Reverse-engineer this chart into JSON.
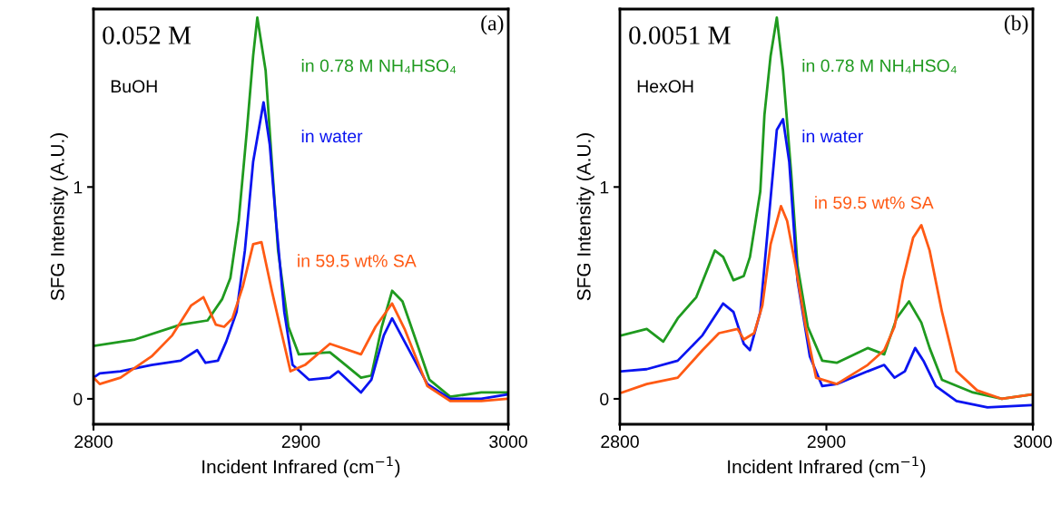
{
  "chart_data": [
    {
      "type": "line",
      "xlabel": "Incident Infrared (cm$^{−1}$)",
      "ylabel": "SFG Intensity (A.U.)",
      "xlim": [
        2800,
        3000
      ],
      "xticks": [
        2800,
        2900,
        3000
      ],
      "ylim": [
        -0.12,
        1.84
      ],
      "yticks": [
        0,
        1
      ],
      "grid": false,
      "legend": false,
      "annotations": [
        "0.052 M",
        "BuOH",
        "(a)"
      ],
      "series": [
        {
          "name": "in 0.78 M NH₄HSO₄",
          "color": "#1f9a1f",
          "x": [
            2800,
            2820,
            2842,
            2855,
            2862,
            2866,
            2870,
            2874,
            2877,
            2879,
            2883,
            2886,
            2889,
            2894,
            2899,
            2914,
            2919,
            2929,
            2934,
            2939,
            2944,
            2949,
            2955,
            2962,
            2972,
            2987,
            3000
          ],
          "values": [
            0.25,
            0.28,
            0.35,
            0.37,
            0.47,
            0.57,
            0.84,
            1.27,
            1.62,
            1.8,
            1.55,
            1.12,
            0.7,
            0.34,
            0.21,
            0.22,
            0.18,
            0.1,
            0.11,
            0.34,
            0.51,
            0.46,
            0.29,
            0.09,
            0.01,
            0.03,
            0.03
          ]
        },
        {
          "name": "in water",
          "color": "#0a14f0",
          "x": [
            2800,
            2803,
            2813,
            2828,
            2842,
            2850,
            2854,
            2860,
            2864,
            2869,
            2873,
            2877,
            2882,
            2885,
            2888,
            2892,
            2896,
            2904,
            2914,
            2918,
            2929,
            2934,
            2940,
            2944,
            2950,
            2961,
            2972,
            2987,
            2999
          ],
          "values": [
            0.1,
            0.12,
            0.13,
            0.16,
            0.18,
            0.23,
            0.17,
            0.18,
            0.27,
            0.41,
            0.7,
            1.12,
            1.4,
            1.2,
            0.84,
            0.41,
            0.16,
            0.09,
            0.1,
            0.13,
            0.03,
            0.09,
            0.3,
            0.38,
            0.27,
            0.07,
            0.0,
            0.0,
            0.02
          ]
        },
        {
          "name": "in 59.5 wt% SA",
          "color": "#ff5a14",
          "x": [
            2800,
            2803,
            2813,
            2828,
            2838,
            2847,
            2853,
            2859,
            2863,
            2867,
            2872,
            2877,
            2881,
            2886,
            2890,
            2895,
            2902,
            2914,
            2929,
            2936,
            2944,
            2950,
            2961,
            2972,
            2987,
            2999
          ],
          "values": [
            0.1,
            0.07,
            0.1,
            0.2,
            0.3,
            0.44,
            0.48,
            0.35,
            0.34,
            0.38,
            0.53,
            0.73,
            0.74,
            0.51,
            0.34,
            0.13,
            0.16,
            0.26,
            0.21,
            0.34,
            0.45,
            0.33,
            0.06,
            -0.01,
            -0.01,
            0.0
          ]
        }
      ]
    },
    {
      "type": "line",
      "xlabel": "Incident Infrared (cm$^{−1}$)",
      "ylabel": "SFG Intensity (A.U.)",
      "xlim": [
        2800,
        3000
      ],
      "xticks": [
        2800,
        2900,
        3000
      ],
      "ylim": [
        -0.12,
        1.84
      ],
      "yticks": [
        0,
        1
      ],
      "grid": false,
      "legend": false,
      "annotations": [
        "0.0051 M",
        "HexOH",
        "(b)"
      ],
      "series": [
        {
          "name": "in 0.78 M NH₄HSO₄",
          "color": "#1f9a1f",
          "x": [
            2801,
            2813,
            2821,
            2828,
            2837,
            2846,
            2850,
            2855,
            2860,
            2863,
            2868,
            2870,
            2873,
            2876,
            2879,
            2883,
            2886,
            2891,
            2898,
            2905,
            2920,
            2928,
            2934,
            2940,
            2946,
            2950,
            2956,
            2971,
            2985,
            2999
          ],
          "values": [
            0.3,
            0.33,
            0.27,
            0.38,
            0.48,
            0.7,
            0.67,
            0.56,
            0.58,
            0.67,
            0.98,
            1.34,
            1.62,
            1.8,
            1.55,
            1.06,
            0.63,
            0.34,
            0.18,
            0.17,
            0.24,
            0.21,
            0.38,
            0.46,
            0.36,
            0.24,
            0.09,
            0.03,
            0.0,
            0.02
          ]
        },
        {
          "name": "in water",
          "color": "#0a14f0",
          "x": [
            2801,
            2813,
            2828,
            2840,
            2850,
            2855,
            2860,
            2863,
            2868,
            2872,
            2876,
            2879,
            2882,
            2886,
            2892,
            2898,
            2905,
            2920,
            2928,
            2933,
            2938,
            2943,
            2947,
            2953,
            2963,
            2978,
            2999
          ],
          "values": [
            0.13,
            0.14,
            0.18,
            0.3,
            0.45,
            0.41,
            0.26,
            0.23,
            0.41,
            0.84,
            1.27,
            1.32,
            1.12,
            0.56,
            0.2,
            0.06,
            0.07,
            0.13,
            0.16,
            0.1,
            0.13,
            0.24,
            0.18,
            0.06,
            -0.01,
            -0.04,
            -0.03
          ]
        },
        {
          "name": "in 59.5 wt% SA",
          "color": "#ff5a14",
          "x": [
            2801,
            2813,
            2828,
            2840,
            2848,
            2857,
            2860,
            2865,
            2869,
            2873,
            2878,
            2881,
            2885,
            2890,
            2895,
            2905,
            2920,
            2928,
            2933,
            2937,
            2942,
            2946,
            2950,
            2956,
            2963,
            2973,
            2985,
            2999
          ],
          "values": [
            0.03,
            0.07,
            0.1,
            0.23,
            0.31,
            0.33,
            0.28,
            0.31,
            0.44,
            0.73,
            0.91,
            0.84,
            0.63,
            0.34,
            0.1,
            0.07,
            0.16,
            0.23,
            0.34,
            0.56,
            0.76,
            0.82,
            0.7,
            0.41,
            0.13,
            0.04,
            0.0,
            0.02
          ]
        }
      ]
    }
  ]
}
